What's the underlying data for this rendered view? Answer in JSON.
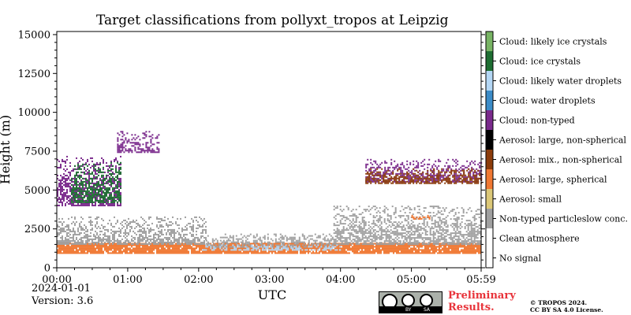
{
  "chart_data": {
    "type": "heatmap",
    "title": "Target classifications from pollyxt_tropos at Leipzig",
    "xlabel": "UTC",
    "ylabel": "Height (m)",
    "x_tick_labels": [
      "00:00",
      "01:00",
      "02:00",
      "03:00",
      "04:00",
      "05:00",
      "05:59"
    ],
    "x_tick_hours": [
      0,
      1,
      2,
      3,
      4,
      5,
      5.983
    ],
    "xlim_hours": [
      0,
      5.983
    ],
    "y_tick_labels": [
      "0",
      "2500",
      "5000",
      "7500",
      "10000",
      "12500",
      "15000"
    ],
    "y_ticks": [
      0,
      2500,
      5000,
      7500,
      10000,
      12500,
      15000
    ],
    "ylim": [
      0,
      15200
    ],
    "legend_position": "right colorbar",
    "classes": [
      {
        "label": "No signal",
        "color": "#ffffff"
      },
      {
        "label": "Clean atmosphere",
        "color": "#ffffff"
      },
      {
        "label": "Non-typed particleslow conc.",
        "color": "#a0a0a0"
      },
      {
        "label": "Aerosol: small",
        "color": "#dcc878"
      },
      {
        "label": "Aerosol: large, spherical",
        "color": "#f07832"
      },
      {
        "label": "Aerosol: mix., non-spherical",
        "color": "#8c3c0a"
      },
      {
        "label": "Aerosol: large, non-spherical",
        "color": "#000000"
      },
      {
        "label": "Cloud: non-typed",
        "color": "#7a2a8c"
      },
      {
        "label": "Cloud: water droplets",
        "color": "#3c8cc8"
      },
      {
        "label": "Cloud: likely water droplets",
        "color": "#b4d7f5"
      },
      {
        "label": "Cloud: ice crystals",
        "color": "#1e6e32"
      },
      {
        "label": "Cloud: likely ice crystals",
        "color": "#78b464"
      }
    ],
    "layers": [
      {
        "class": "Aerosol: large, spherical",
        "start_hour": 0.0,
        "end_hour": 5.983,
        "base_m": 900,
        "top_m": 1600,
        "note_density": 0.9
      },
      {
        "class": "Non-typed particleslow conc.",
        "start_hour": 0.0,
        "end_hour": 2.1,
        "base_m": 1500,
        "top_m": 3300
      },
      {
        "class": "Non-typed particleslow conc.",
        "start_hour": 2.1,
        "end_hour": 3.9,
        "base_m": 1300,
        "top_m": 2200
      },
      {
        "class": "Non-typed particleslow conc.",
        "start_hour": 3.9,
        "end_hour": 5.983,
        "base_m": 1500,
        "top_m": 4000
      },
      {
        "class": "Cloud: likely water droplets",
        "start_hour": 2.05,
        "end_hour": 4.0,
        "base_m": 1100,
        "top_m": 1500
      },
      {
        "class": "Cloud: non-typed",
        "start_hour": 0.0,
        "end_hour": 0.9,
        "base_m": 4000,
        "top_m": 7200
      },
      {
        "class": "Cloud: ice crystals",
        "start_hour": 0.2,
        "end_hour": 0.9,
        "base_m": 4200,
        "top_m": 6800
      },
      {
        "class": "Cloud: non-typed",
        "start_hour": 0.85,
        "end_hour": 1.45,
        "base_m": 7400,
        "top_m": 8800
      },
      {
        "class": "Cloud: non-typed",
        "start_hour": 4.35,
        "end_hour": 5.983,
        "base_m": 5500,
        "top_m": 7000
      },
      {
        "class": "Aerosol: mix., non-spherical",
        "start_hour": 4.35,
        "end_hour": 5.983,
        "base_m": 5400,
        "top_m": 6400
      },
      {
        "class": "Aerosol: large, spherical",
        "start_hour": 5.0,
        "end_hour": 5.25,
        "base_m": 3100,
        "top_m": 3500
      }
    ]
  },
  "footer": {
    "date": "2024-01-01",
    "version": "Version: 3.6",
    "preliminary_line1": "Preliminary",
    "preliminary_line2": "Results.",
    "copyright_line1": "© TROPOS 2024.",
    "copyright_line2": "CC BY SA 4.0 License.",
    "cc_badge_by": "BY",
    "cc_badge_sa": "SA"
  }
}
